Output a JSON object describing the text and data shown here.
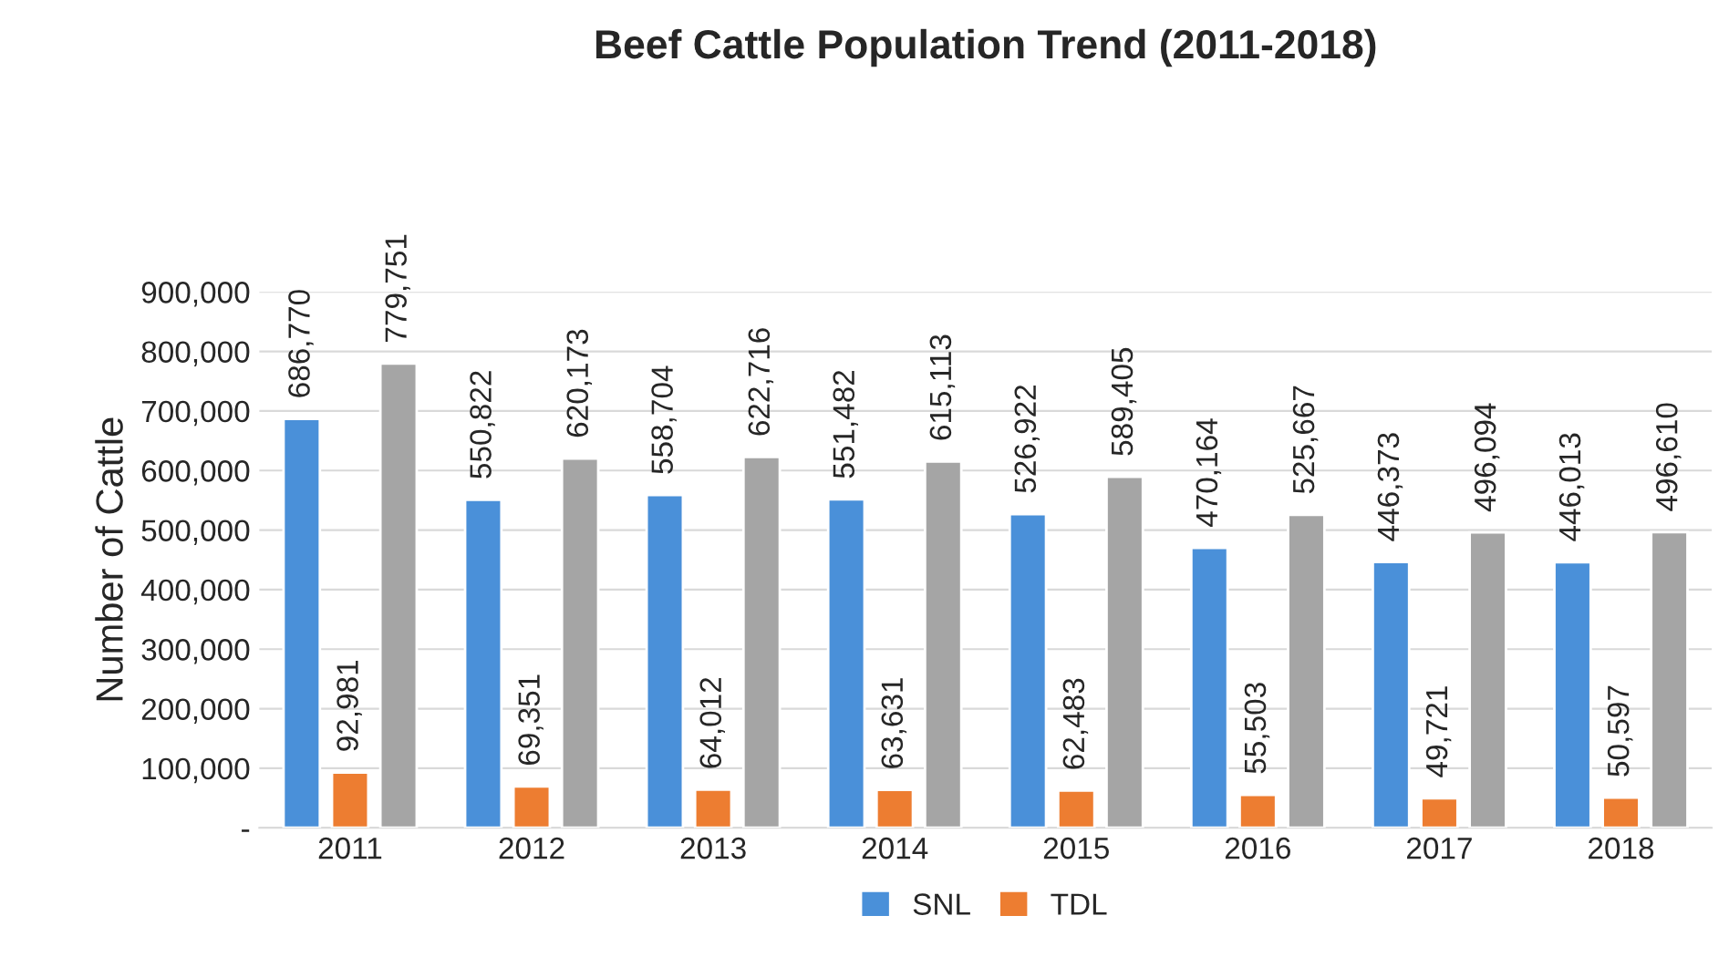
{
  "chart_data": {
    "type": "bar",
    "title": "Beef Cattle Population Trend (2011-2018)",
    "ylabel": "Number of Cattle",
    "categories": [
      "2011",
      "2012",
      "2013",
      "2014",
      "2015",
      "2016",
      "2017",
      "2018"
    ],
    "series": [
      {
        "name": "SNL",
        "color": "#4a90d9",
        "values": [
          686770,
          550822,
          558704,
          551482,
          526922,
          470164,
          446373,
          446013
        ],
        "value_labels": [
          "686,770",
          "550,822",
          "558,704",
          "551,482",
          "526,922",
          "470,164",
          "446,373",
          "446,013"
        ]
      },
      {
        "name": "TDL",
        "color": "#ed7d31",
        "values": [
          92981,
          69351,
          64012,
          63631,
          62483,
          55503,
          49721,
          50597
        ],
        "value_labels": [
          "92,981",
          "69,351",
          "64,012",
          "63,631",
          "62,483",
          "55,503",
          "49,721",
          "50,597"
        ]
      },
      {
        "color": "#a5a5a5",
        "values": [
          779751,
          620173,
          622716,
          615113,
          589405,
          525667,
          496094,
          496610
        ],
        "value_labels": [
          "779,751",
          "620,173",
          "622,716",
          "615,113",
          "589,405",
          "525,667",
          "496,094",
          "496,610"
        ]
      }
    ],
    "ylim": [
      0,
      900000
    ],
    "yticks": [
      {
        "value": 0,
        "label": "-"
      },
      {
        "value": 100000,
        "label": "100,000"
      },
      {
        "value": 200000,
        "label": "200,000"
      },
      {
        "value": 300000,
        "label": "300,000"
      },
      {
        "value": 400000,
        "label": "400,000"
      },
      {
        "value": 500000,
        "label": "500,000"
      },
      {
        "value": 600000,
        "label": "600,000"
      },
      {
        "value": 700000,
        "label": "700,000"
      },
      {
        "value": 800000,
        "label": "800,000"
      },
      {
        "value": 900000,
        "label": "900,000"
      }
    ],
    "grid": "y",
    "legend": "bottom"
  }
}
